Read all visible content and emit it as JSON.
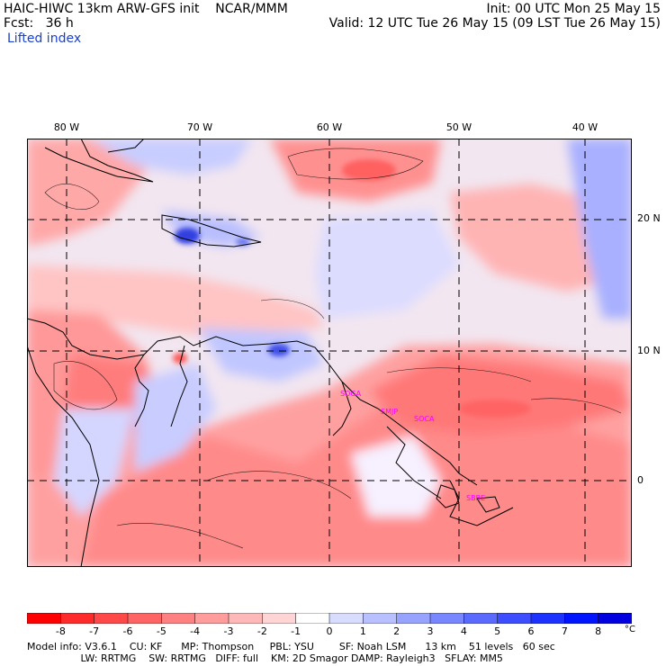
{
  "header": {
    "title": "HAIC-HIWC 13km ARW-GFS init    NCAR/MMM",
    "init": "Init: 00 UTC Mon 25 May 15",
    "forecast": "Fcst:   36 h",
    "valid": "Valid: 12 UTC Tue 26 May 15 (09 LST Tue 26 May 15)",
    "field": "Lifted index"
  },
  "map": {
    "lon_labels": [
      "80 W",
      "70 W",
      "60 W",
      "50 W",
      "40 W"
    ],
    "lat_labels": [
      "20 N",
      "10 N",
      "0"
    ],
    "stations": [
      "SOGA",
      "SMJP",
      "SOCA",
      "SBBE"
    ],
    "station_color": "#ff00ff",
    "negative_color": "#ff3030",
    "positive_color": "#2030e0"
  },
  "colorbar": {
    "unit": "°C",
    "ticks": [
      "-8",
      "-7",
      "-6",
      "-5",
      "-4",
      "-3",
      "-2",
      "-1",
      "0",
      "1",
      "2",
      "3",
      "4",
      "5",
      "6",
      "7",
      "8"
    ],
    "colors": [
      "#ff0000",
      "#ff2a2a",
      "#ff4848",
      "#ff6464",
      "#ff8080",
      "#ff9c9c",
      "#ffb8b8",
      "#ffd4d4",
      "#ffffff",
      "#d8dcff",
      "#b8c0ff",
      "#98a2ff",
      "#7886ff",
      "#5a6aff",
      "#3c4eff",
      "#1e32ff",
      "#0014ff",
      "#0000e0"
    ]
  },
  "footer": {
    "line1": "Model info: V3.6.1    CU: KF      MP: Thompson     PBL: YSU        SF: Noah LSM      13 km    51 levels   60 sec",
    "line2": "                 LW: RRTMG    SW: RRTMG   DIFF: full    KM: 2D Smagor DAMP: Rayleigh3   SFLAY: MM5"
  }
}
